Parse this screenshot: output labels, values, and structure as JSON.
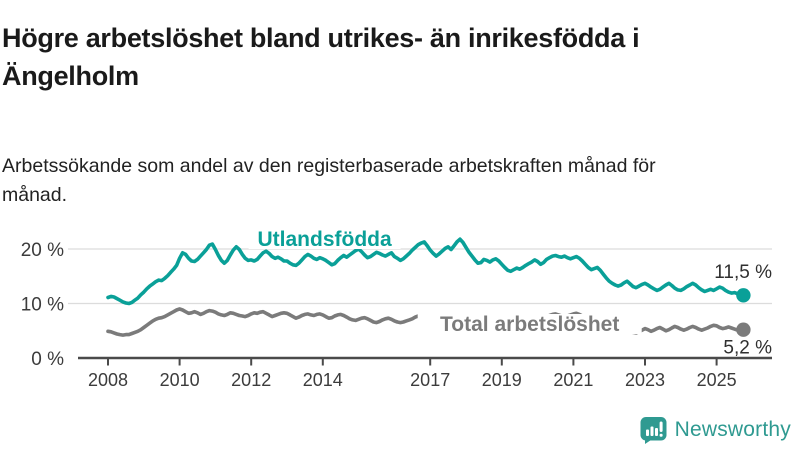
{
  "header": {
    "title": "Högre arbetslöshet bland utrikes- än inrikesfödda i Ängelholm",
    "subtitle": "Arbetssökande som andel av den registerbaserade arbetskraften månad för månad."
  },
  "chart_data": {
    "type": "line",
    "title": "Högre arbetslöshet bland utrikes- än inrikesfödda i Ängelholm",
    "subtitle": "Arbetssökande som andel av den registerbaserade arbetskraften månad för månad.",
    "grid": "horizontal",
    "legend_position": "inline-labels",
    "x_axis": {
      "unit": "month",
      "start_year": 2008,
      "end": "2025-10",
      "tick_years": [
        2008,
        2010,
        2012,
        2014,
        2017,
        2019,
        2021,
        2023,
        2025
      ],
      "tick_labels": [
        "2008",
        "2010",
        "2012",
        "2014",
        "2017",
        "2019",
        "2021",
        "2023",
        "2025"
      ]
    },
    "y_axis": {
      "format": "percent",
      "ylim": [
        0,
        22
      ],
      "ticks": [
        {
          "value": 0,
          "label": "0 %"
        },
        {
          "value": 10,
          "label": "10 %"
        },
        {
          "value": 20,
          "label": "20 %"
        }
      ]
    },
    "series": [
      {
        "name": "Utlandsfödda",
        "color": "#0aa098",
        "end_value": 11.5,
        "end_label": "11,5 %",
        "values": [
          11.1,
          11.3,
          11.2,
          10.9,
          10.6,
          10.3,
          10.1,
          10.0,
          10.2,
          10.6,
          11.0,
          11.6,
          12.1,
          12.7,
          13.2,
          13.6,
          14.0,
          14.3,
          14.2,
          14.6,
          15.1,
          15.7,
          16.3,
          17.0,
          18.3,
          19.3,
          19.0,
          18.3,
          17.8,
          17.7,
          18.1,
          18.7,
          19.3,
          19.9,
          20.7,
          20.9,
          19.9,
          18.8,
          17.9,
          17.4,
          17.9,
          18.9,
          19.8,
          20.4,
          19.9,
          19.0,
          18.3,
          17.9,
          18.0,
          17.8,
          18.1,
          18.7,
          19.3,
          19.6,
          19.2,
          18.6,
          18.3,
          18.5,
          18.2,
          17.8,
          17.8,
          17.4,
          17.1,
          17.0,
          17.4,
          18.0,
          18.6,
          19.0,
          18.7,
          18.3,
          18.1,
          18.4,
          18.2,
          17.9,
          17.5,
          17.1,
          17.3,
          17.9,
          18.4,
          18.8,
          18.5,
          18.9,
          19.3,
          19.7,
          20.0,
          19.5,
          18.9,
          18.4,
          18.6,
          19.0,
          19.4,
          19.2,
          18.9,
          18.7,
          19.0,
          19.3,
          18.6,
          18.3,
          17.9,
          18.2,
          18.7,
          19.2,
          19.8,
          20.3,
          20.8,
          21.1,
          21.3,
          20.6,
          19.8,
          19.2,
          18.7,
          19.1,
          19.6,
          20.1,
          20.4,
          19.9,
          20.6,
          21.3,
          21.8,
          21.2,
          20.3,
          19.4,
          18.7,
          18.0,
          17.4,
          17.5,
          18.1,
          17.9,
          17.6,
          18.0,
          18.2,
          17.8,
          17.2,
          16.6,
          16.1,
          15.9,
          16.2,
          16.5,
          16.3,
          16.6,
          17.0,
          17.3,
          17.6,
          18.0,
          17.7,
          17.2,
          17.5,
          18.1,
          18.4,
          18.7,
          18.8,
          18.6,
          18.5,
          18.7,
          18.4,
          18.2,
          18.4,
          18.6,
          18.3,
          17.8,
          17.2,
          16.6,
          16.2,
          16.4,
          16.6,
          16.1,
          15.4,
          14.7,
          14.1,
          13.7,
          13.4,
          13.2,
          13.4,
          13.8,
          14.1,
          13.6,
          13.1,
          12.9,
          13.2,
          13.5,
          13.7,
          13.4,
          13.0,
          12.7,
          12.4,
          12.6,
          13.0,
          13.4,
          13.7,
          13.3,
          12.8,
          12.5,
          12.4,
          12.7,
          13.1,
          13.4,
          13.7,
          13.4,
          12.9,
          12.5,
          12.2,
          12.4,
          12.6,
          12.4,
          12.7,
          13.0,
          12.8,
          12.4,
          12.1,
          11.9,
          12.0,
          11.8,
          11.6,
          11.5
        ]
      },
      {
        "name": "Total arbetslöshet",
        "color": "#7b7b7b",
        "end_value": 5.2,
        "end_label": "5,2 %",
        "values": [
          4.9,
          4.8,
          4.6,
          4.4,
          4.3,
          4.2,
          4.3,
          4.3,
          4.5,
          4.7,
          4.9,
          5.2,
          5.6,
          6.0,
          6.4,
          6.8,
          7.1,
          7.3,
          7.4,
          7.6,
          7.9,
          8.2,
          8.5,
          8.8,
          9.0,
          8.8,
          8.5,
          8.2,
          8.3,
          8.5,
          8.3,
          8.0,
          8.2,
          8.5,
          8.7,
          8.6,
          8.4,
          8.1,
          7.9,
          7.8,
          8.0,
          8.3,
          8.2,
          8.0,
          7.8,
          7.7,
          7.6,
          7.8,
          8.1,
          8.3,
          8.2,
          8.4,
          8.5,
          8.2,
          7.9,
          7.6,
          7.8,
          8.0,
          8.2,
          8.3,
          8.2,
          7.9,
          7.6,
          7.3,
          7.5,
          7.8,
          8.0,
          8.1,
          7.9,
          7.8,
          8.0,
          8.1,
          7.9,
          7.6,
          7.3,
          7.4,
          7.7,
          7.9,
          8.0,
          7.8,
          7.5,
          7.2,
          7.0,
          6.9,
          7.1,
          7.3,
          7.4,
          7.2,
          6.9,
          6.6,
          6.5,
          6.7,
          7.0,
          7.2,
          7.3,
          7.1,
          6.8,
          6.6,
          6.5,
          6.6,
          6.8,
          7.0,
          7.2,
          7.5,
          7.7,
          7.5,
          7.2,
          7.0,
          7.1,
          7.3,
          7.2,
          7.0,
          6.8,
          6.9,
          7.1,
          7.0,
          6.8,
          6.6,
          6.5,
          6.6,
          6.5,
          6.3,
          6.1,
          6.0,
          6.1,
          6.3,
          6.4,
          6.2,
          6.0,
          5.9,
          6.0,
          6.1,
          6.2,
          6.0,
          5.9,
          5.8,
          5.9,
          6.1,
          6.2,
          6.1,
          6.0,
          6.1,
          6.2,
          6.4,
          6.5,
          6.6,
          7.0,
          7.5,
          7.8,
          8.0,
          8.1,
          7.9,
          7.7,
          7.6,
          7.7,
          7.9,
          8.1,
          8.2,
          8.0,
          7.7,
          7.4,
          7.1,
          6.9,
          6.7,
          6.5,
          6.3,
          6.1,
          6.0,
          5.8,
          5.6,
          5.4,
          5.2,
          5.1,
          5.0,
          5.1,
          4.9,
          4.7,
          4.6,
          4.8,
          5.1,
          5.4,
          5.2,
          4.9,
          5.1,
          5.4,
          5.6,
          5.3,
          5.0,
          5.2,
          5.5,
          5.8,
          5.6,
          5.3,
          5.1,
          5.3,
          5.6,
          5.8,
          5.6,
          5.3,
          5.1,
          5.3,
          5.5,
          5.8,
          6.0,
          5.9,
          5.6,
          5.4,
          5.5,
          5.7,
          5.5,
          5.3,
          5.1,
          5.0,
          5.2
        ]
      }
    ]
  },
  "footer": {
    "brand": "Newsworthy",
    "brand_color": "#2f9a91",
    "logo_icon": "bar-chart-speech-bubble-icon"
  },
  "colors": {
    "background": "#ffffff",
    "title_text": "#1a1a1a",
    "subtitle_text": "#222222",
    "axis_text": "#3c3c3c",
    "gridline": "#dcdcdc",
    "axis_line": "#4a4a4a",
    "value_label_text": "#2f2f2f"
  }
}
